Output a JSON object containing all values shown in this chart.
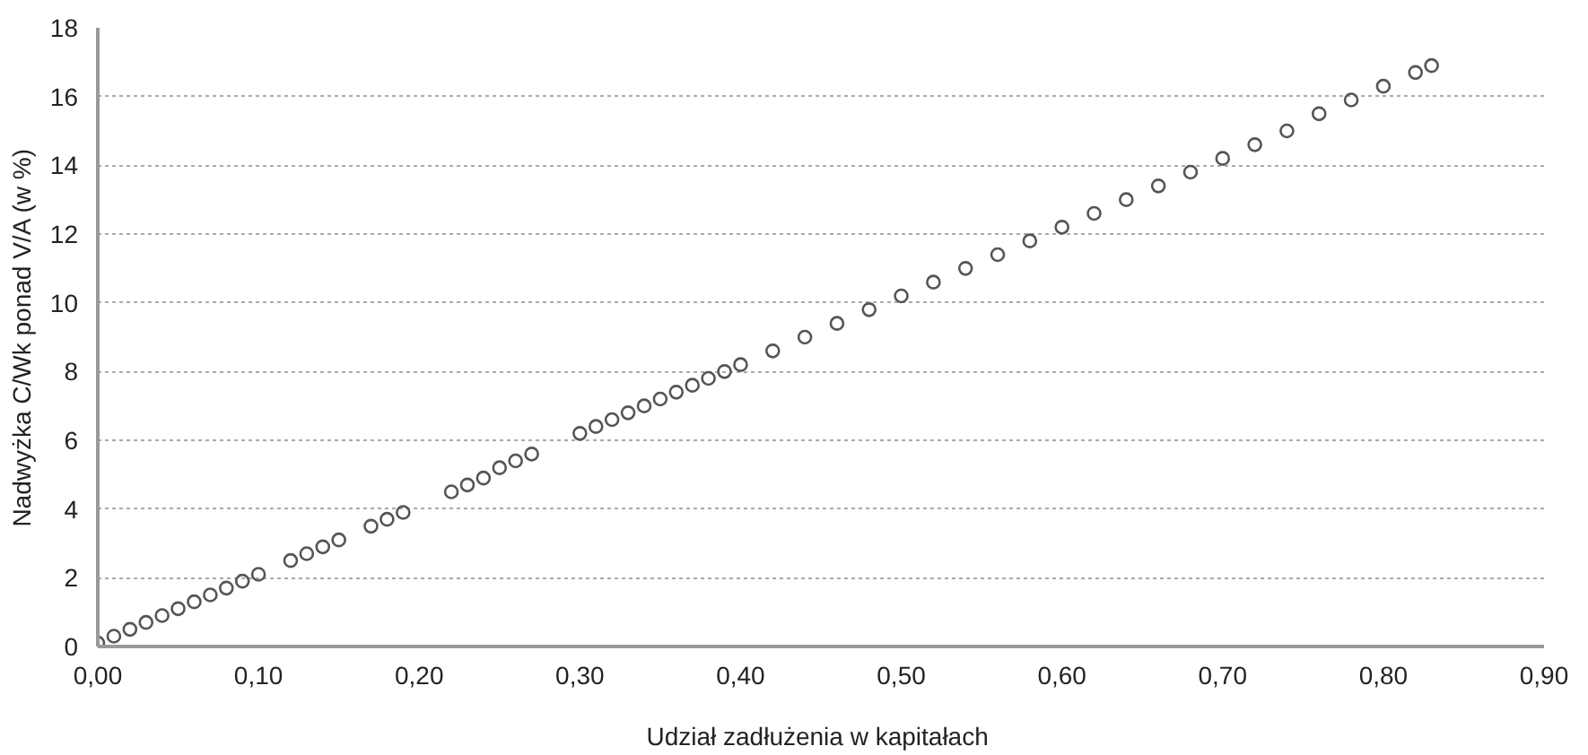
{
  "chart_data": {
    "type": "scatter",
    "xlabel": "Udział zadłużenia  w kapitałach",
    "ylabel": "Nadwyżka C/Wk ponad V/A (w %)",
    "x": [
      0.0,
      0.01,
      0.02,
      0.03,
      0.04,
      0.05,
      0.06,
      0.07,
      0.08,
      0.09,
      0.1,
      0.12,
      0.13,
      0.14,
      0.15,
      0.17,
      0.18,
      0.19,
      0.22,
      0.23,
      0.24,
      0.25,
      0.26,
      0.27,
      0.3,
      0.31,
      0.32,
      0.33,
      0.34,
      0.35,
      0.36,
      0.37,
      0.38,
      0.39,
      0.4,
      0.42,
      0.44,
      0.46,
      0.48,
      0.5,
      0.52,
      0.54,
      0.56,
      0.58,
      0.6,
      0.62,
      0.64,
      0.66,
      0.68,
      0.7,
      0.72,
      0.74,
      0.76,
      0.78,
      0.8,
      0.82,
      0.83
    ],
    "series": [
      {
        "color": "#555555",
        "values": [
          0.1,
          0.3,
          0.5,
          0.7,
          0.9,
          1.1,
          1.3,
          1.5,
          1.7,
          1.9,
          2.1,
          2.5,
          2.7,
          2.9,
          3.1,
          3.5,
          3.7,
          3.9,
          4.5,
          4.7,
          4.9,
          5.2,
          5.4,
          5.6,
          6.2,
          6.4,
          6.6,
          6.8,
          7.0,
          7.2,
          7.4,
          7.6,
          7.8,
          8.0,
          8.2,
          8.6,
          9.0,
          9.4,
          9.8,
          10.2,
          10.6,
          11.0,
          11.4,
          11.8,
          12.2,
          12.6,
          13.0,
          13.4,
          13.8,
          14.2,
          14.6,
          15.0,
          15.5,
          15.9,
          16.3,
          16.7,
          16.9
        ]
      }
    ],
    "xlim": [
      0,
      0.9
    ],
    "ylim": [
      0,
      18
    ],
    "xticks": [
      {
        "value": 0,
        "label": "0,00"
      },
      {
        "value": 0.1,
        "label": "0,10"
      },
      {
        "value": 0.2,
        "label": "0,20"
      },
      {
        "value": 0.3,
        "label": "0,30"
      },
      {
        "value": 0.4,
        "label": "0,40"
      },
      {
        "value": 0.5,
        "label": "0,50"
      },
      {
        "value": 0.6,
        "label": "0,60"
      },
      {
        "value": 0.7,
        "label": "0,70"
      },
      {
        "value": 0.8,
        "label": "0,80"
      },
      {
        "value": 0.9,
        "label": "0,90"
      }
    ],
    "yticks": [
      0,
      2,
      4,
      6,
      8,
      10,
      12,
      14,
      16,
      18
    ],
    "grid": "y",
    "marker": "circle"
  }
}
